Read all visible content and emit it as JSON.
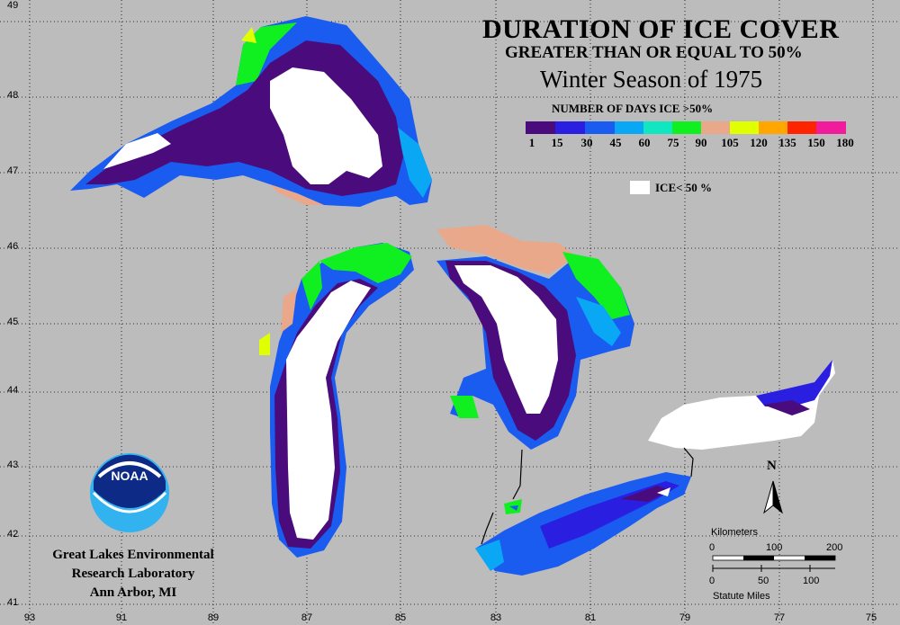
{
  "title": {
    "line1": "DURATION OF ICE COVER",
    "line2": "GREATER THAN OR EQUAL TO 50%",
    "line3": "Winter Season of 1975"
  },
  "legend": {
    "title": "NUMBER OF DAYS ICE >50%",
    "labels": [
      "1",
      "15",
      "30",
      "45",
      "60",
      "75",
      "90",
      "105",
      "120",
      "135",
      "150",
      "180"
    ],
    "colors": [
      "#4a0c7c",
      "#2a1ee0",
      "#1a5cf0",
      "#0aa8f4",
      "#10e6c0",
      "#10f020",
      "#e9a88a",
      "#e0ff00",
      "#ffa600",
      "#ff2400",
      "#f01c9c"
    ],
    "ice_label": "ICE< 50 %",
    "ice_color": "#ffffff"
  },
  "axes": {
    "latitudes": [
      "49",
      "48",
      "47",
      "46",
      "45",
      "44",
      "43",
      "42",
      "41"
    ],
    "longitudes": [
      "93",
      "91",
      "89",
      "87",
      "85",
      "83",
      "81",
      "79",
      "77",
      "75"
    ]
  },
  "organization": {
    "logo_text": "NOAA",
    "line1": "Great Lakes Environmental",
    "line2": "Research Laboratory",
    "line3": "Ann Arbor, MI"
  },
  "north_arrow": "N",
  "scale_bar": {
    "km_title": "Kilometers",
    "km_ticks": [
      "0",
      "100",
      "200"
    ],
    "mi_ticks": [
      "0",
      "50",
      "100"
    ],
    "mi_title": "Statute Miles"
  }
}
